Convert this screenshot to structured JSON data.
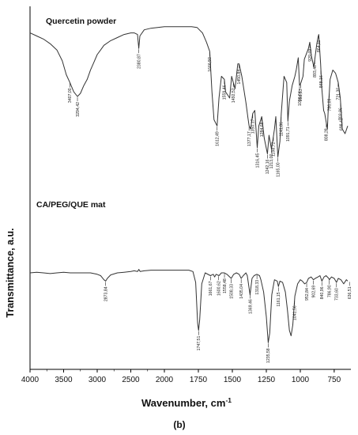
{
  "caption": "(b)",
  "chart_data": {
    "type": "line",
    "xlabel": "Wavenumber, cm",
    "xlabel_sup": "-1",
    "ylabel": "Transmittance, a.u.",
    "x_range": [
      4000,
      650
    ],
    "x_reversed": true,
    "x_ticks": [
      "4000",
      "3500",
      "3000",
      "2500",
      "2000",
      "1750",
      "1500",
      "1250",
      "1000",
      "750"
    ],
    "grid": false,
    "series": [
      {
        "name": "Quercetin powder",
        "color": "#333333",
        "points": [
          [
            4000,
            0.9
          ],
          [
            3900,
            0.88
          ],
          [
            3800,
            0.86
          ],
          [
            3700,
            0.83
          ],
          [
            3600,
            0.79
          ],
          [
            3520,
            0.72
          ],
          [
            3460,
            0.63
          ],
          [
            3407,
            0.58
          ],
          [
            3350,
            0.52
          ],
          [
            3294,
            0.49
          ],
          [
            3250,
            0.51
          ],
          [
            3200,
            0.56
          ],
          [
            3150,
            0.6
          ],
          [
            3100,
            0.66
          ],
          [
            3050,
            0.71
          ],
          [
            3000,
            0.76
          ],
          [
            2950,
            0.79
          ],
          [
            2900,
            0.82
          ],
          [
            2800,
            0.85
          ],
          [
            2700,
            0.87
          ],
          [
            2600,
            0.89
          ],
          [
            2500,
            0.9
          ],
          [
            2450,
            0.9
          ],
          [
            2400,
            0.89
          ],
          [
            2381,
            0.8
          ],
          [
            2365,
            0.88
          ],
          [
            2300,
            0.92
          ],
          [
            2200,
            0.93
          ],
          [
            2100,
            0.935
          ],
          [
            2000,
            0.94
          ],
          [
            1900,
            0.94
          ],
          [
            1800,
            0.94
          ],
          [
            1760,
            0.935
          ],
          [
            1720,
            0.9
          ],
          [
            1690,
            0.84
          ],
          [
            1666,
            0.78
          ],
          [
            1650,
            0.52
          ],
          [
            1635,
            0.34
          ],
          [
            1612,
            0.3
          ],
          [
            1598,
            0.48
          ],
          [
            1580,
            0.62
          ],
          [
            1559,
            0.6
          ],
          [
            1550,
            0.52
          ],
          [
            1520,
            0.48
          ],
          [
            1505,
            0.62
          ],
          [
            1493,
            0.58
          ],
          [
            1480,
            0.54
          ],
          [
            1460,
            0.7
          ],
          [
            1450,
            0.7
          ],
          [
            1430,
            0.62
          ],
          [
            1400,
            0.45
          ],
          [
            1385,
            0.35
          ],
          [
            1377,
            0.3
          ],
          [
            1365,
            0.28
          ],
          [
            1350,
            0.38
          ],
          [
            1335,
            0.4
          ],
          [
            1317,
            0.16
          ],
          [
            1305,
            0.3
          ],
          [
            1284,
            0.36
          ],
          [
            1265,
            0.22
          ],
          [
            1242,
            0.12
          ],
          [
            1230,
            0.24
          ],
          [
            1212,
            0.15
          ],
          [
            1200,
            0.22
          ],
          [
            1190,
            0.28
          ],
          [
            1180,
            0.36
          ],
          [
            1165,
            0.1
          ],
          [
            1150,
            0.2
          ],
          [
            1140,
            0.38
          ],
          [
            1120,
            0.62
          ],
          [
            1100,
            0.58
          ],
          [
            1091,
            0.33
          ],
          [
            1080,
            0.46
          ],
          [
            1060,
            0.56
          ],
          [
            1040,
            0.62
          ],
          [
            1030,
            0.66
          ],
          [
            1015,
            0.74
          ],
          [
            1006,
            0.56
          ],
          [
            995,
            0.58
          ],
          [
            980,
            0.62
          ],
          [
            970,
            0.73
          ],
          [
            940,
            0.8
          ],
          [
            930,
            0.84
          ],
          [
            918,
            0.75
          ],
          [
            900,
            0.68
          ],
          [
            880,
            0.82
          ],
          [
            870,
            0.87
          ],
          [
            864,
            0.89
          ],
          [
            850,
            0.7
          ],
          [
            842,
            0.55
          ],
          [
            828,
            0.4
          ],
          [
            820,
            0.38
          ],
          [
            808,
            0.32
          ],
          [
            800,
            0.28
          ],
          [
            795,
            0.38
          ],
          [
            780,
            0.6
          ],
          [
            760,
            0.66
          ],
          [
            740,
            0.64
          ],
          [
            720,
            0.58
          ],
          [
            705,
            0.48
          ],
          [
            690,
            0.28
          ],
          [
            670,
            0.25
          ],
          [
            650,
            0.3
          ]
        ],
        "annotations": [
          {
            "x": 3407,
            "label": "3407,00"
          },
          {
            "x": 3294,
            "label": "3294,42"
          },
          {
            "x": 2381,
            "label": "2380,87"
          },
          {
            "x": 1666,
            "label": "1666,50"
          },
          {
            "x": 1612,
            "label": "1612,49"
          },
          {
            "x": 1559,
            "label": "1559,46"
          },
          {
            "x": 1493,
            "label": "1492,52"
          },
          {
            "x": 1451,
            "label": "1450,84"
          },
          {
            "x": 1377,
            "label": "1377,17"
          },
          {
            "x": 1350,
            "label": "1350,17"
          },
          {
            "x": 1317,
            "label": "1316,45"
          },
          {
            "x": 1284,
            "label": "1284,68"
          },
          {
            "x": 1242,
            "label": "1242,16"
          },
          {
            "x": 1213,
            "label": "1213,00"
          },
          {
            "x": 1198,
            "label": "1198,72"
          },
          {
            "x": 1165,
            "label": "1165,00"
          },
          {
            "x": 1141,
            "label": "1141,86"
          },
          {
            "x": 1091,
            "label": "1091,71"
          },
          {
            "x": 1006,
            "label": "1006,84"
          },
          {
            "x": 998,
            "label": "998,13"
          },
          {
            "x": 929,
            "label": "929,69"
          },
          {
            "x": 893,
            "label": "893,40"
          },
          {
            "x": 864,
            "label": "864,11"
          },
          {
            "x": 848,
            "label": "848,16"
          },
          {
            "x": 808,
            "label": "808,28"
          },
          {
            "x": 786,
            "label": "786,09"
          },
          {
            "x": 721,
            "label": "721,30"
          },
          {
            "x": 703,
            "label": "702,86"
          },
          {
            "x": 698,
            "label": "698,43"
          }
        ]
      },
      {
        "name": "CA/PEG/QUE mat",
        "color": "#333333",
        "points": [
          [
            4000,
            0.52
          ],
          [
            3900,
            0.525
          ],
          [
            3800,
            0.52
          ],
          [
            3700,
            0.515
          ],
          [
            3600,
            0.52
          ],
          [
            3500,
            0.525
          ],
          [
            3400,
            0.52
          ],
          [
            3300,
            0.52
          ],
          [
            3200,
            0.52
          ],
          [
            3100,
            0.52
          ],
          [
            3000,
            0.51
          ],
          [
            2950,
            0.5
          ],
          [
            2900,
            0.47
          ],
          [
            2874,
            0.46
          ],
          [
            2850,
            0.48
          ],
          [
            2800,
            0.505
          ],
          [
            2700,
            0.52
          ],
          [
            2600,
            0.525
          ],
          [
            2500,
            0.53
          ],
          [
            2450,
            0.535
          ],
          [
            2400,
            0.53
          ],
          [
            2380,
            0.545
          ],
          [
            2360,
            0.53
          ],
          [
            2300,
            0.535
          ],
          [
            2200,
            0.54
          ],
          [
            2100,
            0.54
          ],
          [
            2000,
            0.54
          ],
          [
            1900,
            0.54
          ],
          [
            1820,
            0.54
          ],
          [
            1790,
            0.53
          ],
          [
            1770,
            0.45
          ],
          [
            1755,
            0.15
          ],
          [
            1748,
            0.1
          ],
          [
            1740,
            0.18
          ],
          [
            1725,
            0.44
          ],
          [
            1700,
            0.52
          ],
          [
            1661,
            0.5
          ],
          [
            1640,
            0.51
          ],
          [
            1630,
            0.49
          ],
          [
            1620,
            0.51
          ],
          [
            1598,
            0.5
          ],
          [
            1580,
            0.52
          ],
          [
            1560,
            0.52
          ],
          [
            1540,
            0.51
          ],
          [
            1508,
            0.48
          ],
          [
            1490,
            0.51
          ],
          [
            1470,
            0.52
          ],
          [
            1450,
            0.51
          ],
          [
            1435,
            0.48
          ],
          [
            1420,
            0.5
          ],
          [
            1400,
            0.52
          ],
          [
            1390,
            0.5
          ],
          [
            1370,
            0.36
          ],
          [
            1355,
            0.48
          ],
          [
            1340,
            0.5
          ],
          [
            1320,
            0.51
          ],
          [
            1300,
            0.5
          ],
          [
            1290,
            0.47
          ],
          [
            1270,
            0.38
          ],
          [
            1250,
            0.2
          ],
          [
            1236,
            0.01
          ],
          [
            1225,
            0.08
          ],
          [
            1210,
            0.36
          ],
          [
            1190,
            0.47
          ],
          [
            1170,
            0.46
          ],
          [
            1161,
            0.42
          ],
          [
            1150,
            0.46
          ],
          [
            1130,
            0.45
          ],
          [
            1110,
            0.38
          ],
          [
            1095,
            0.25
          ],
          [
            1080,
            0.1
          ],
          [
            1068,
            0.06
          ],
          [
            1055,
            0.14
          ],
          [
            1040,
            0.35
          ],
          [
            1020,
            0.44
          ],
          [
            1000,
            0.47
          ],
          [
            985,
            0.46
          ],
          [
            968,
            0.44
          ],
          [
            953,
            0.45
          ],
          [
            940,
            0.48
          ],
          [
            920,
            0.49
          ],
          [
            903,
            0.47
          ],
          [
            890,
            0.48
          ],
          [
            870,
            0.49
          ],
          [
            855,
            0.5
          ],
          [
            841,
            0.46
          ],
          [
            825,
            0.49
          ],
          [
            810,
            0.5
          ],
          [
            790,
            0.48
          ],
          [
            786,
            0.47
          ],
          [
            770,
            0.49
          ],
          [
            750,
            0.48
          ],
          [
            733,
            0.45
          ],
          [
            720,
            0.48
          ],
          [
            700,
            0.47
          ],
          [
            680,
            0.44
          ],
          [
            660,
            0.47
          ],
          [
            650,
            0.46
          ]
        ],
        "annotations": [
          {
            "x": 2874,
            "label": "2873,84"
          },
          {
            "x": 1748,
            "label": "1747,51"
          },
          {
            "x": 1661,
            "label": "1661,67"
          },
          {
            "x": 1601,
            "label": "1600,62"
          },
          {
            "x": 1558,
            "label": "1558,48"
          },
          {
            "x": 1508,
            "label": "1508,33"
          },
          {
            "x": 1435,
            "label": "1435,04"
          },
          {
            "x": 1369,
            "label": "1369,46"
          },
          {
            "x": 1319,
            "label": "1318,33"
          },
          {
            "x": 1236,
            "label": "1235,58"
          },
          {
            "x": 1161,
            "label": "1161,15"
          },
          {
            "x": 1042,
            "label": "1041,56"
          },
          {
            "x": 953,
            "label": "952,84"
          },
          {
            "x": 903,
            "label": "902,69"
          },
          {
            "x": 841,
            "label": "840,96"
          },
          {
            "x": 787,
            "label": "786,90"
          },
          {
            "x": 733,
            "label": "733,60"
          },
          {
            "x": 637,
            "label": "636,51"
          }
        ]
      }
    ]
  }
}
